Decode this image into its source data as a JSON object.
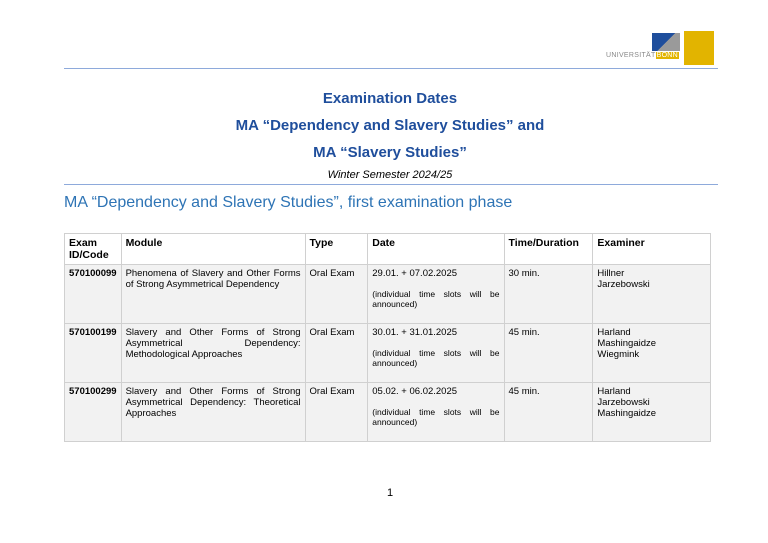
{
  "logo": {
    "text_left": "UNIVERSITÄT",
    "text_right": "BONN"
  },
  "titles": [
    "Examination Dates",
    "MA “Dependency and Slavery Studies” and",
    "MA “Slavery Studies”"
  ],
  "semester": "Winter Semester 2024/25",
  "section_heading": "MA “Dependency and Slavery Studies”, first examination phase",
  "table": {
    "headers": [
      "Exam ID/Code",
      "Module",
      "Type",
      "Date",
      "Time/Duration",
      "Examiner"
    ],
    "rows": [
      {
        "id": "570100099",
        "module": "Phenomena of Slavery and Other Forms of Strong Asymmetrical Dependency",
        "type": "Oral Exam",
        "date": "29.01. + 07.02.2025",
        "note": "(individual time slots will be announced)",
        "duration": "30 min.",
        "examiner": "Hillner\nJarzebowski"
      },
      {
        "id": "570100199",
        "module": "Slavery and Other Forms of Strong Asymmetrical Dependency: Methodological Approaches",
        "type": "Oral Exam",
        "date": "30.01. + 31.01.2025",
        "note": "(individual time slots will be announced)",
        "duration": "45 min.",
        "examiner": "Harland\nMashingaidze\nWiegmink"
      },
      {
        "id": "570100299",
        "module": "Slavery and Other Forms of Strong Asymmetrical Dependency: Theoretical Approaches",
        "type": "Oral Exam",
        "date": "05.02. + 06.02.2025",
        "note": "(individual time slots will be announced)",
        "duration": "45 min.",
        "examiner": "Harland\nJarzebowski\nMashingaidze"
      }
    ]
  },
  "page_number": "1"
}
